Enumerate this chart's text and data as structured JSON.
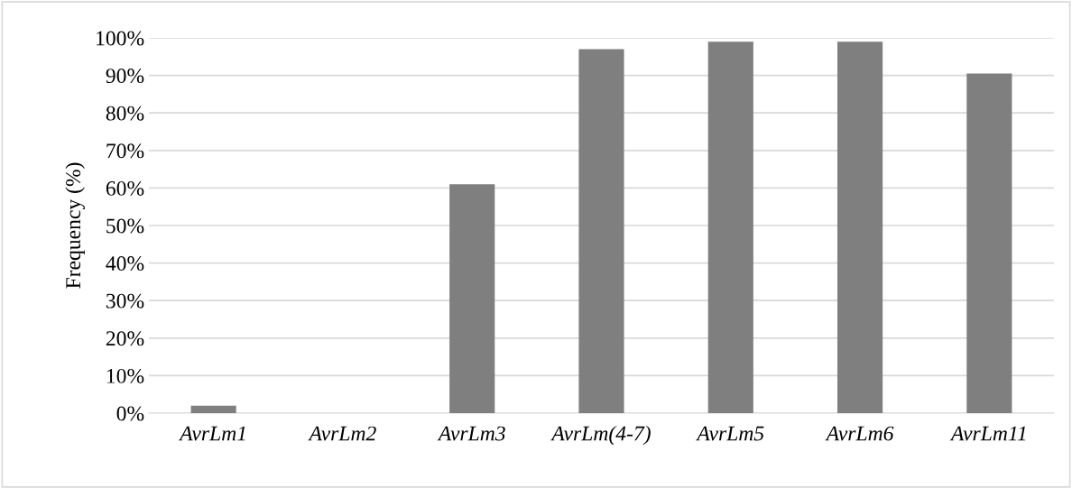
{
  "chart_data": {
    "type": "bar",
    "ylabel": "Frequency (%)",
    "categories": [
      "AvrLm1",
      "AvrLm2",
      "AvrLm3",
      "AvrLm(4-7)",
      "AvrLm5",
      "AvrLm6",
      "AvrLm11"
    ],
    "values": [
      2,
      0,
      61,
      97,
      99,
      99,
      90.5
    ],
    "color": "#7f7f7f",
    "ylim": [
      0,
      100
    ],
    "yticks": [
      {
        "value": 0,
        "label": "0%"
      },
      {
        "value": 10,
        "label": "10%"
      },
      {
        "value": 20,
        "label": "20%"
      },
      {
        "value": 30,
        "label": "30%"
      },
      {
        "value": 40,
        "label": "40%"
      },
      {
        "value": 50,
        "label": "50%"
      },
      {
        "value": 60,
        "label": "60%"
      },
      {
        "value": 70,
        "label": "70%"
      },
      {
        "value": 80,
        "label": "80%"
      },
      {
        "value": 90,
        "label": "90%"
      },
      {
        "value": 100,
        "label": "100%"
      }
    ],
    "grid": "y"
  }
}
